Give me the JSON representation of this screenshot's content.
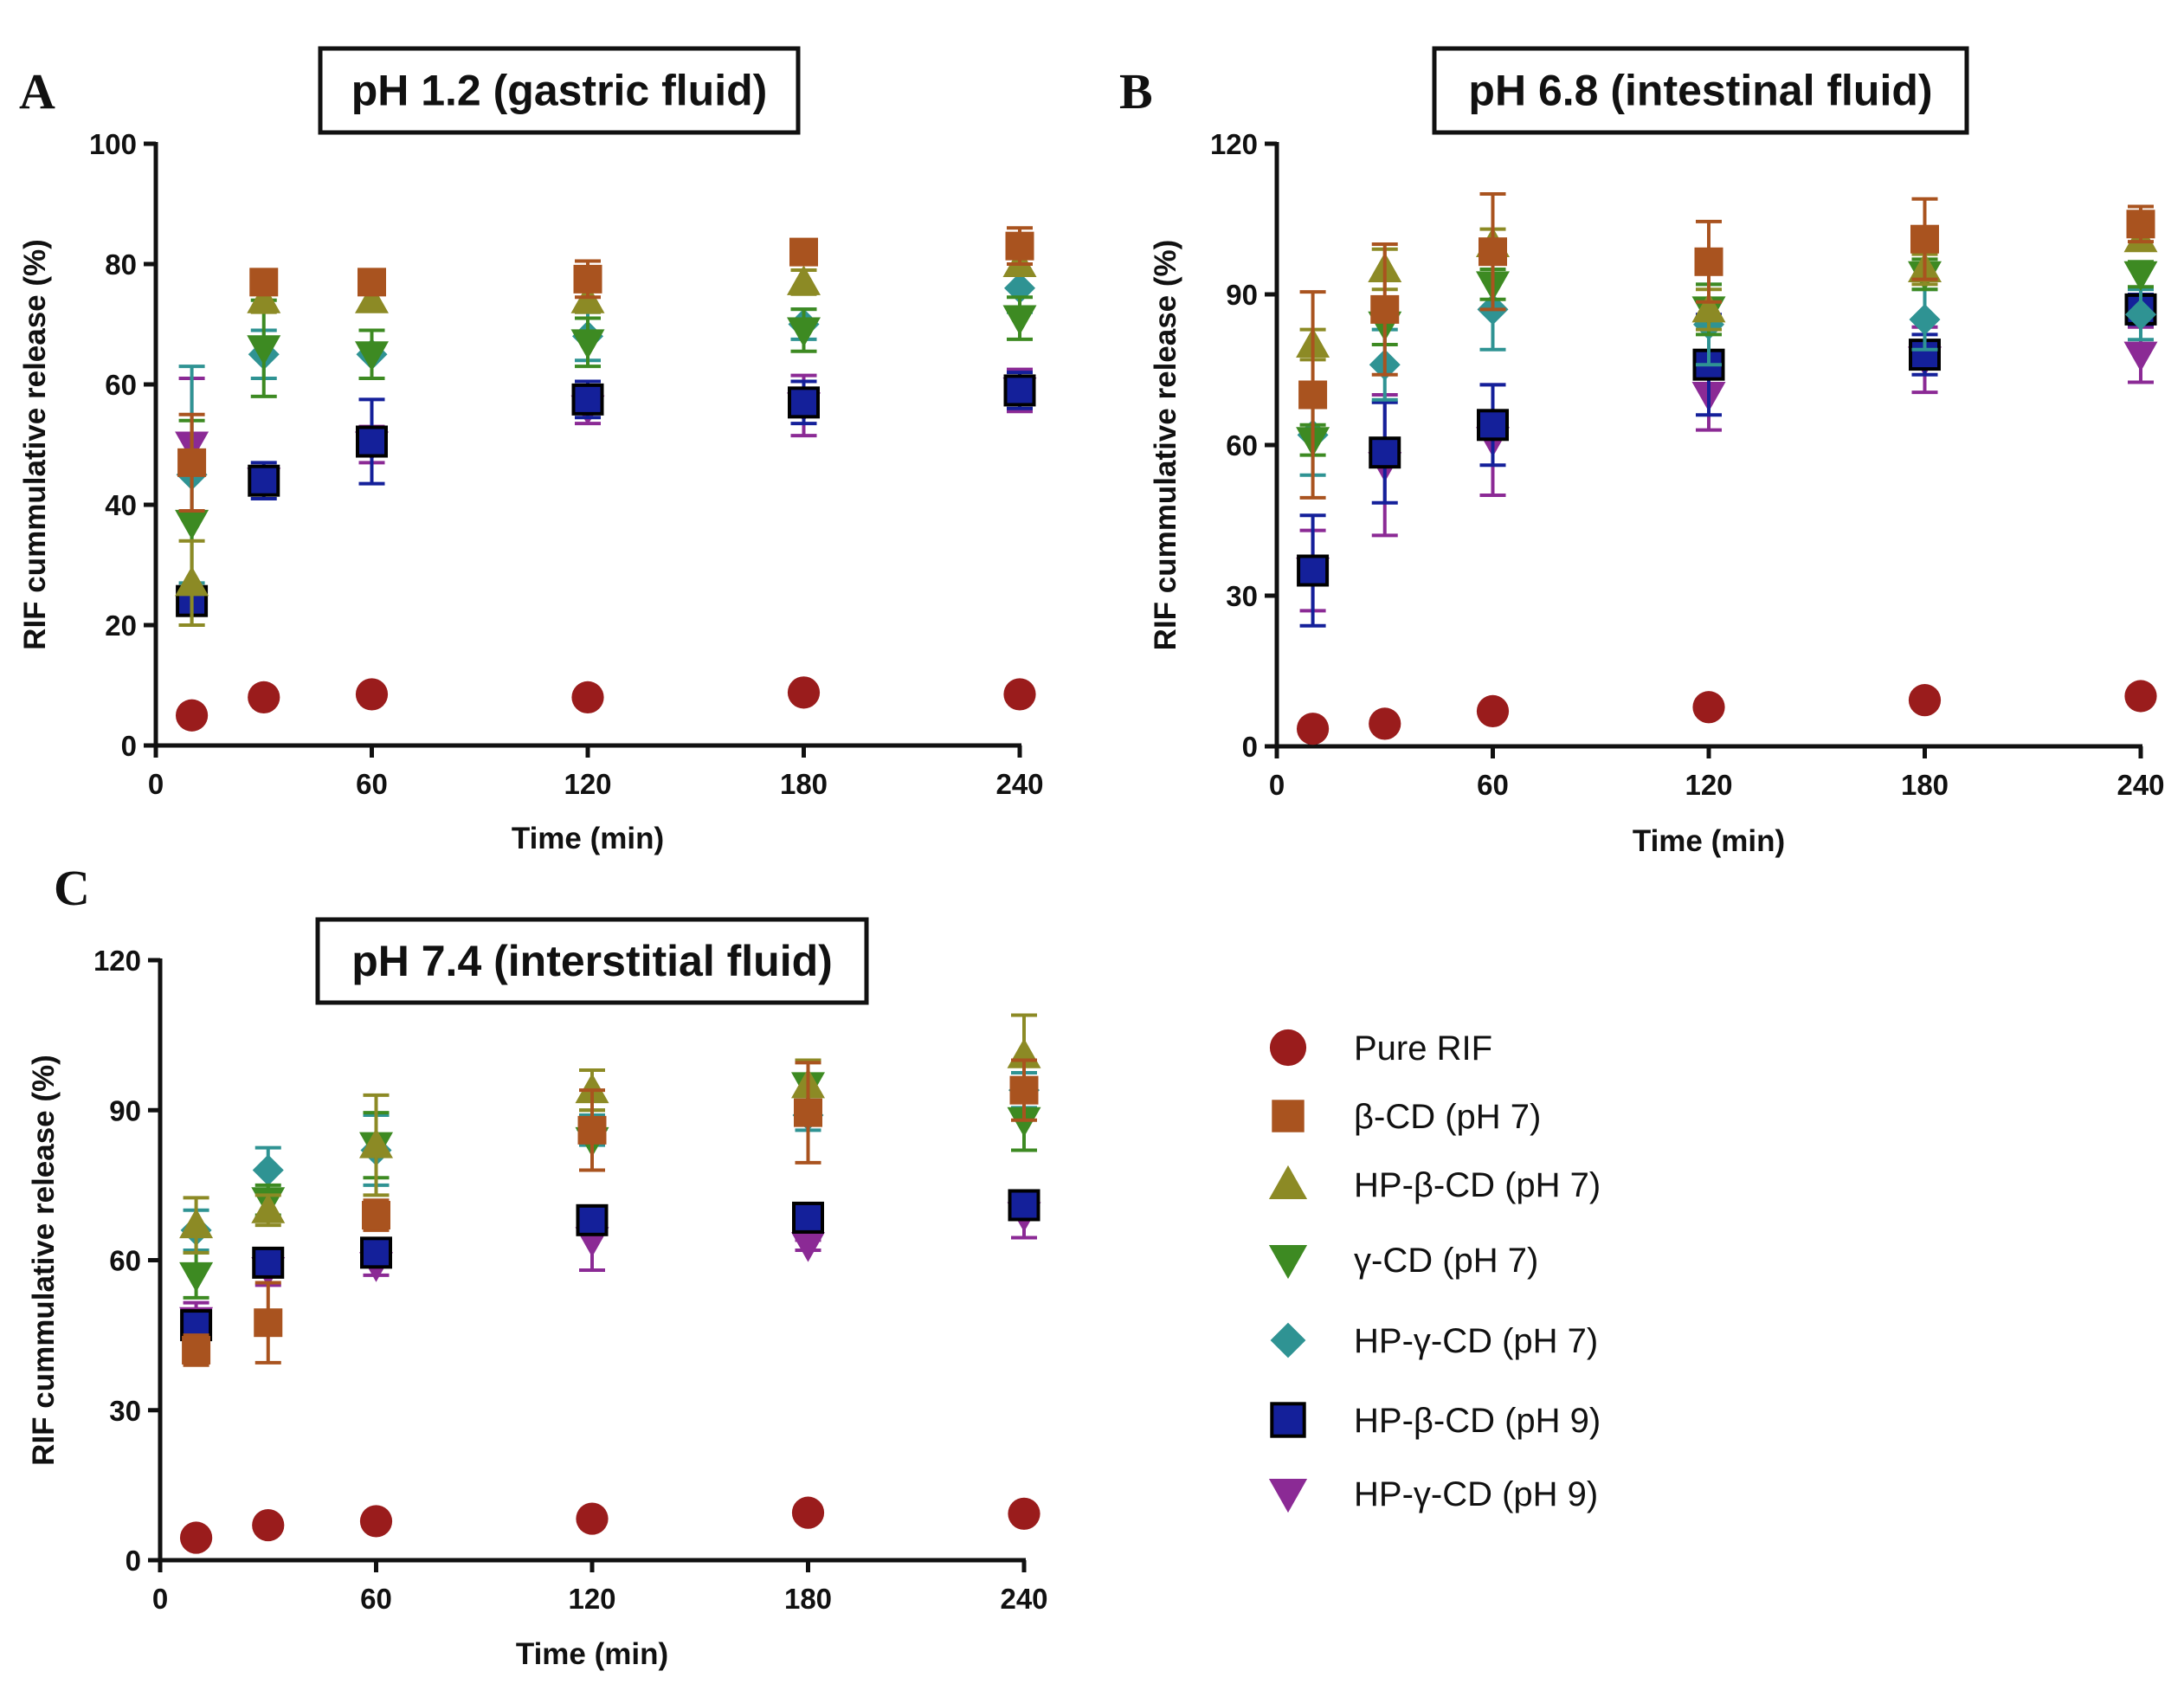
{
  "chart_data": [
    {
      "type": "scatter",
      "panel": "A",
      "title": "pH 1.2 (gastric fluid)",
      "xlabel": "Time (min)",
      "ylabel": "RIF cummulative release (%)",
      "xlim": [
        0,
        240
      ],
      "ylim": [
        0,
        100
      ],
      "xticks": [
        0,
        60,
        120,
        180,
        240
      ],
      "yticks": [
        0,
        20,
        40,
        60,
        80,
        100
      ],
      "x": [
        10,
        30,
        60,
        120,
        180,
        240
      ],
      "series": [
        {
          "name": "Pure RIF",
          "values": [
            5,
            8,
            8.5,
            8,
            8.8,
            8.5
          ],
          "err": [
            0,
            0,
            0,
            0,
            0,
            0
          ]
        },
        {
          "name": "β-CD (pH 7)",
          "values": [
            47,
            77,
            77,
            77.5,
            82,
            83
          ],
          "err": [
            8,
            1,
            1.5,
            3,
            1,
            3
          ]
        },
        {
          "name": "HP-β-CD (pH 7)",
          "values": [
            27,
            74,
            74,
            74,
            77,
            80
          ],
          "err": [
            7,
            2,
            1.5,
            2,
            2,
            1.5
          ]
        },
        {
          "name": "γ-CD (pH 7)",
          "values": [
            37,
            66,
            65,
            67,
            69,
            71
          ],
          "err": [
            17,
            8,
            4,
            4,
            3.5,
            3.5
          ]
        },
        {
          "name": "HP-γ-CD (pH 7)",
          "values": [
            45,
            65,
            65,
            68,
            70,
            76
          ],
          "err": [
            18,
            4,
            4,
            4,
            2.5,
            4
          ]
        },
        {
          "name": "HP-β-CD (pH 9)",
          "values": [
            24,
            44,
            50.5,
            57.5,
            57,
            59
          ],
          "err": [
            2,
            3,
            7,
            3,
            3.5,
            3
          ]
        },
        {
          "name": "HP-γ-CD (pH 9)",
          "values": [
            50,
            44,
            50,
            56,
            56.5,
            59
          ],
          "err": [
            11,
            2,
            3,
            2.5,
            5,
            3.5
          ]
        }
      ]
    },
    {
      "type": "scatter",
      "panel": "B",
      "title": "pH 6.8 (intestinal fluid)",
      "xlabel": "Time (min)",
      "ylabel": "RIF cummulative release (%)",
      "xlim": [
        0,
        240
      ],
      "ylim": [
        0,
        120
      ],
      "xticks": [
        0,
        60,
        120,
        180,
        240
      ],
      "yticks": [
        0,
        30,
        60,
        90,
        120
      ],
      "x": [
        10,
        30,
        60,
        120,
        180,
        240
      ],
      "series": [
        {
          "name": "Pure RIF",
          "values": [
            3.5,
            4.5,
            7,
            7.8,
            9.2,
            10
          ],
          "err": [
            0,
            0,
            0,
            0,
            0,
            0
          ]
        },
        {
          "name": "β-CD (pH 7)",
          "values": [
            70,
            87,
            98.5,
            96.5,
            101,
            104
          ],
          "err": [
            20.5,
            13,
            11.5,
            8,
            8,
            3.5
          ]
        },
        {
          "name": "HP-β-CD (pH 7)",
          "values": [
            80,
            95,
            100,
            87,
            95,
            101
          ],
          "err": [
            3,
            4,
            3,
            4,
            3,
            2
          ]
        },
        {
          "name": "γ-CD (pH 7)",
          "values": [
            61,
            84,
            92,
            87,
            94,
            94
          ],
          "err": [
            3,
            4,
            3,
            5,
            3,
            2.5
          ]
        },
        {
          "name": "HP-γ-CD (pH 7)",
          "values": [
            62,
            76,
            87,
            84,
            85,
            86
          ],
          "err": [
            8,
            7,
            8,
            8,
            6,
            5
          ]
        },
        {
          "name": "HP-β-CD (pH 9)",
          "values": [
            35,
            58.5,
            64,
            76,
            78,
            87
          ],
          "err": [
            11,
            10,
            8,
            10,
            4,
            3
          ]
        },
        {
          "name": "HP-γ-CD (pH 9)",
          "values": [
            35,
            56,
            61,
            70,
            77,
            78
          ],
          "err": [
            8,
            14,
            11,
            7,
            6.5,
            5.5
          ]
        }
      ]
    },
    {
      "type": "scatter",
      "panel": "C",
      "title": "pH 7.4 (interstitial fluid)",
      "xlabel": "Time (min)",
      "ylabel": "RIF cummulative release (%)",
      "xlim": [
        0,
        240
      ],
      "ylim": [
        0,
        120
      ],
      "xticks": [
        0,
        60,
        120,
        180,
        240
      ],
      "yticks": [
        0,
        30,
        60,
        90,
        120
      ],
      "x": [
        10,
        30,
        60,
        120,
        180,
        240
      ],
      "series": [
        {
          "name": "Pure RIF",
          "values": [
            4.5,
            7,
            7.8,
            8.3,
            9.5,
            9.3
          ],
          "err": [
            0,
            0,
            0,
            0,
            0,
            0
          ]
        },
        {
          "name": "β-CD (pH 7)",
          "values": [
            42,
            47.5,
            69,
            86,
            89.5,
            94
          ],
          "err": [
            3,
            8,
            3,
            8,
            10,
            6
          ]
        },
        {
          "name": "HP-β-CD (pH 7)",
          "values": [
            67,
            70,
            83,
            94,
            95,
            101
          ],
          "err": [
            5.5,
            3,
            10,
            4,
            5,
            8
          ]
        },
        {
          "name": "γ-CD (pH 7)",
          "values": [
            57,
            72,
            83,
            84,
            95,
            88
          ],
          "err": [
            4.5,
            3,
            6.5,
            6,
            5,
            6
          ]
        },
        {
          "name": "HP-γ-CD (pH 7)",
          "values": [
            66,
            78,
            82,
            86,
            89,
            94
          ],
          "err": [
            4,
            4.5,
            7,
            3,
            3,
            3.5
          ]
        },
        {
          "name": "HP-β-CD (pH 9)",
          "values": [
            47,
            59.5,
            61.5,
            68,
            68.5,
            71
          ],
          "err": [
            2,
            2.5,
            2,
            2,
            1,
            2
          ]
        },
        {
          "name": "HP-γ-CD (pH 9)",
          "values": [
            48,
            58,
            59,
            64,
            63,
            69
          ],
          "err": [
            3.5,
            3,
            2,
            6,
            1,
            4.5
          ]
        }
      ]
    }
  ],
  "legend": {
    "placement": "bottom-right",
    "items": [
      {
        "label": "Pure RIF",
        "marker": "circle",
        "color": "#9a1c1c"
      },
      {
        "label": "β-CD (pH 7)",
        "marker": "square",
        "color": "#a9531f"
      },
      {
        "label": "HP-β-CD (pH 7)",
        "marker": "triangle-up",
        "color": "#8c8a25"
      },
      {
        "label": "γ-CD (pH 7)",
        "marker": "triangle-down",
        "color": "#3d8a22"
      },
      {
        "label": "HP-γ-CD (pH 7)",
        "marker": "diamond",
        "color": "#2f9393"
      },
      {
        "label": "HP-β-CD (pH 9)",
        "marker": "square-outlined",
        "color": "#14209a"
      },
      {
        "label": "HP-γ-CD (pH 9)",
        "marker": "triangle-down",
        "color": "#8b2a95"
      }
    ]
  }
}
